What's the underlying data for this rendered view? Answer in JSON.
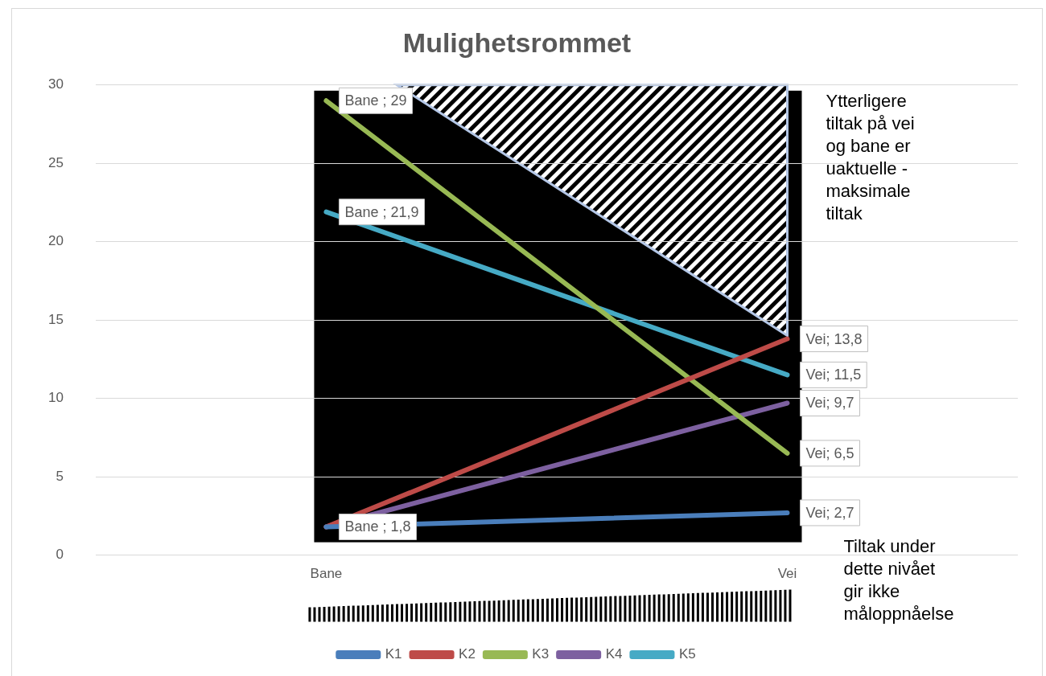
{
  "chart_data": {
    "type": "line",
    "title": "Mulighetsrommet",
    "categories": [
      "Bane",
      "Vei"
    ],
    "series": [
      {
        "name": "K1",
        "color": "#4a7ebb",
        "values": [
          1.8,
          2.7
        ],
        "value_labels": [
          "Bane ; 1,8",
          "Vei; 2,7"
        ]
      },
      {
        "name": "K2",
        "color": "#be4b48",
        "values": [
          1.8,
          13.8
        ],
        "value_labels": [
          null,
          "Vei; 13,8"
        ]
      },
      {
        "name": "K3",
        "color": "#98b954",
        "values": [
          29,
          6.5
        ],
        "value_labels": [
          "Bane ; 29",
          "Vei; 6,5"
        ]
      },
      {
        "name": "K4",
        "color": "#7d60a0",
        "values": [
          1.8,
          9.7
        ],
        "value_labels": [
          null,
          "Vei; 9,7"
        ]
      },
      {
        "name": "K5",
        "color": "#46aac5",
        "values": [
          21.9,
          11.5
        ],
        "value_labels": [
          "Bane ; 21,9",
          "Vei; 11,5"
        ]
      }
    ],
    "ylim": [
      0,
      30
    ],
    "yticks": [
      0,
      5,
      10,
      15,
      20,
      25,
      30
    ],
    "grid": "y",
    "legend": "bottom",
    "marker": "none",
    "annotations": [
      "Ytterligere tiltak på vei og bane er uaktuelle - maksimale tiltak",
      "Tiltak under dette nivået gir ikke måloppnåelse"
    ]
  }
}
